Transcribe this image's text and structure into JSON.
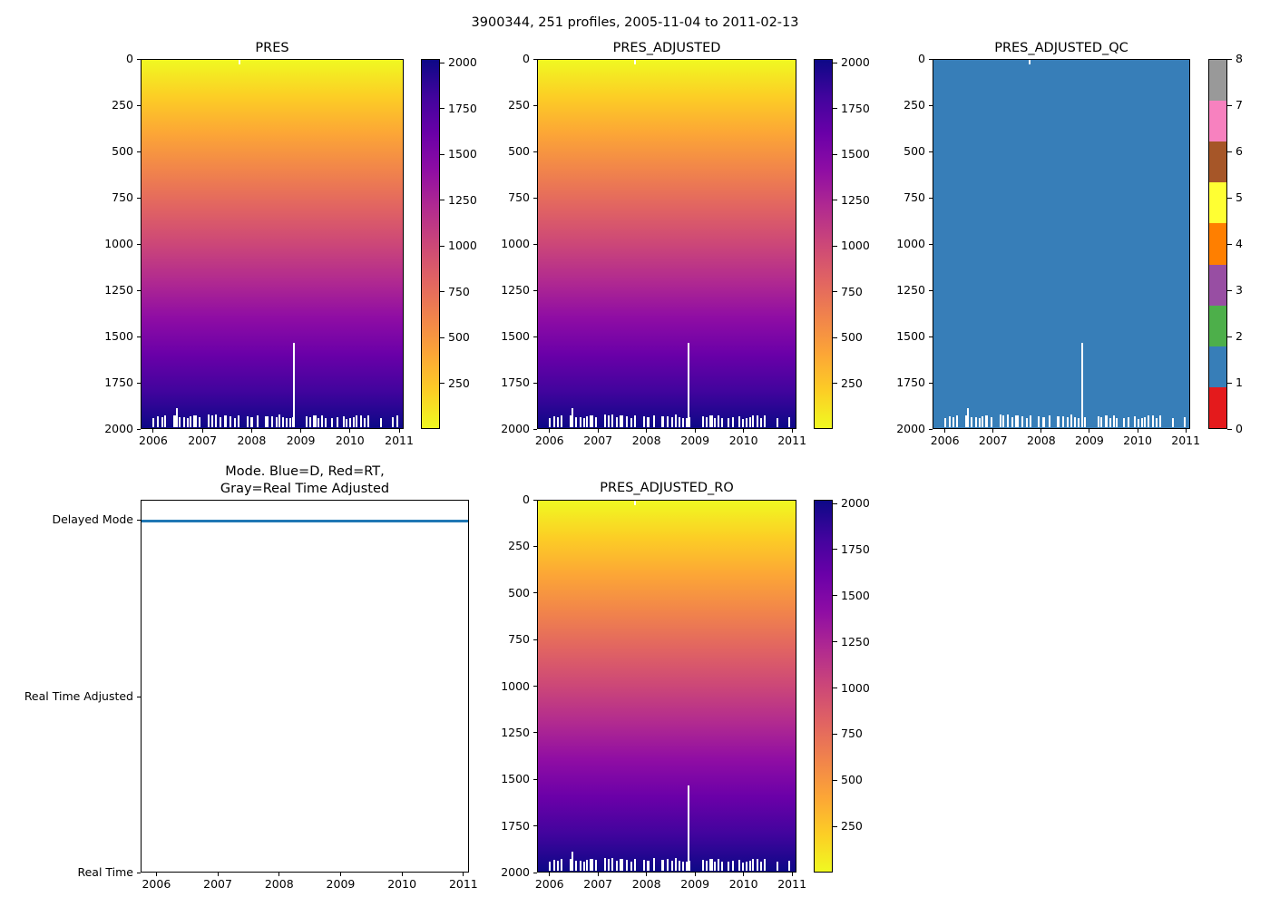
{
  "figure": {
    "suptitle": "3900344, 251 profiles, 2005-11-04 to 2011-02-13"
  },
  "colors": {
    "plasma_scale_low_to_high": [
      "#0d0887",
      "#41049d",
      "#6a00a8",
      "#8f0da4",
      "#b12a90",
      "#cc4778",
      "#e16462",
      "#f1844b",
      "#fca636",
      "#fcce25",
      "#f0f921"
    ],
    "qc_palette_0_to_8": [
      "#e41a1c",
      "#377eb8",
      "#4daf4a",
      "#984ea3",
      "#ff7f00",
      "#ffff33",
      "#a65628",
      "#f781bf",
      "#999999"
    ],
    "qc_fill": "#377eb8",
    "mode_line": "#1f77b4",
    "missing_gap": "#ffffff"
  },
  "profile_gaps": {
    "bottom_band": {
      "pressure_from": 1935,
      "pressure_to": 2000,
      "note": "irregular white gaps at the deepest levels of most profiles"
    },
    "deep_spikes": [
      {
        "year": 2006.46,
        "from_pressure": 1890,
        "to_pressure": 2000
      },
      {
        "year": 2008.86,
        "from_pressure": 1535,
        "to_pressure": 2000
      }
    ],
    "surface_notch": {
      "year": 2007.75,
      "from_pressure": 0,
      "to_pressure": 25
    }
  },
  "chart_data": [
    {
      "type": "heatmap",
      "title": "PRES",
      "x_ticks": [
        "2006",
        "2007",
        "2008",
        "2009",
        "2010",
        "2011"
      ],
      "y_ticks": [
        "0",
        "250",
        "500",
        "750",
        "1000",
        "1250",
        "1500",
        "1750",
        "2000"
      ],
      "y_range": [
        0,
        2000
      ],
      "y_inverted": true,
      "colorbar_ticks": [
        "250",
        "500",
        "750",
        "1000",
        "1250",
        "1500",
        "1750",
        "2000"
      ],
      "colorbar_range": [
        0,
        2020
      ],
      "colormap": "plasma reversed: yellow = 0 dbar at surface, dark navy = 2000 dbar",
      "value_pattern": "pressure increases smoothly 0 to 2000 dbar with depth, identical for all 251 profiles; white marks = missing samples"
    },
    {
      "type": "heatmap",
      "title": "PRES_ADJUSTED",
      "x_ticks": [
        "2006",
        "2007",
        "2008",
        "2009",
        "2010",
        "2011"
      ],
      "y_ticks": [
        "0",
        "250",
        "500",
        "750",
        "1000",
        "1250",
        "1500",
        "1750",
        "2000"
      ],
      "y_range": [
        0,
        2000
      ],
      "y_inverted": true,
      "colorbar_ticks": [
        "250",
        "500",
        "750",
        "1000",
        "1250",
        "1500",
        "1750",
        "2000"
      ],
      "colorbar_range": [
        0,
        2020
      ],
      "colormap": "plasma reversed: yellow = 0 dbar at surface, dark navy = 2000 dbar",
      "value_pattern": "same gradient as PRES; adjusted pressure matches raw pressure"
    },
    {
      "type": "heatmap",
      "title": "PRES_ADJUSTED_QC",
      "x_ticks": [
        "2006",
        "2007",
        "2008",
        "2009",
        "2010",
        "2011"
      ],
      "y_ticks": [
        "0",
        "250",
        "500",
        "750",
        "1000",
        "1250",
        "1500",
        "1750",
        "2000"
      ],
      "y_range": [
        0,
        2000
      ],
      "y_inverted": true,
      "colorbar_categories": [
        "0",
        "1",
        "2",
        "3",
        "4",
        "5",
        "6",
        "7",
        "8"
      ],
      "colormap": "9-class categorical (Set1-like): 0 red, 1 blue, 2 green, 3 purple, 4 orange, 5 yellow, 6 brown, 7 pink, 8 gray",
      "value_pattern": "uniform QC flag = 1 (blue, good data) for every sample; white marks = missing samples"
    },
    {
      "type": "line",
      "title": "Mode. Blue=D, Red=RT,\nGray=Real Time Adjusted",
      "x_ticks": [
        "2006",
        "2007",
        "2008",
        "2009",
        "2010",
        "2011"
      ],
      "y_categories": [
        "Delayed Mode",
        "Real Time Adjusted",
        "Real Time"
      ],
      "series": [
        {
          "name": "processing mode",
          "color": "#1f77b4",
          "meaning": "Blue = Delayed Mode",
          "value": "Delayed Mode for the entire record 2005-11-04 to 2011-02-13"
        }
      ]
    },
    {
      "type": "heatmap",
      "title": "PRES_ADJUSTED_RO",
      "x_ticks": [
        "2006",
        "2007",
        "2008",
        "2009",
        "2010",
        "2011"
      ],
      "y_ticks": [
        "0",
        "250",
        "500",
        "750",
        "1000",
        "1250",
        "1500",
        "1750",
        "2000"
      ],
      "y_range": [
        0,
        2000
      ],
      "y_inverted": true,
      "colorbar_ticks": [
        "250",
        "500",
        "750",
        "1000",
        "1250",
        "1500",
        "1750",
        "2000"
      ],
      "colorbar_range": [
        0,
        2020
      ],
      "colormap": "plasma reversed: yellow = 0 dbar at surface, dark navy = 2000 dbar",
      "value_pattern": "same gradient as PRES; read-only adjusted pressure identical to adjusted pressure"
    }
  ]
}
